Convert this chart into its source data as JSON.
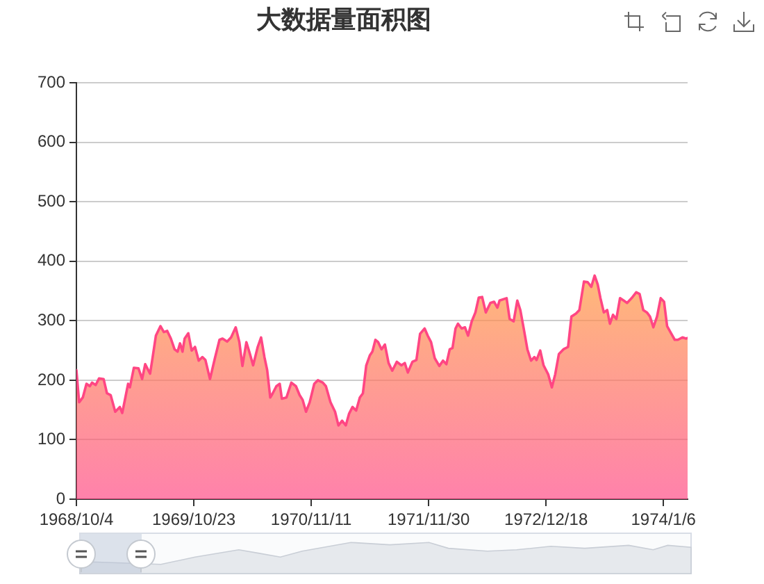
{
  "chart_data": {
    "type": "area",
    "title": "大数据量面积图",
    "x": [
      "1968-10-04",
      "1968-10-13",
      "1968-10-25",
      "1968-11-06",
      "1968-11-17",
      "1968-11-24",
      "1968-12-06",
      "1968-12-17",
      "1969-01-01",
      "1969-01-12",
      "1969-01-24",
      "1969-02-08",
      "1969-02-23",
      "1969-03-03",
      "1969-03-10",
      "1969-03-22",
      "1969-03-28",
      "1969-04-10",
      "1969-04-25",
      "1969-05-07",
      "1969-05-17",
      "1969-06-02",
      "1969-06-09",
      "1969-06-21",
      "1969-07-06",
      "1969-07-17",
      "1969-07-28",
      "1969-08-09",
      "1969-08-21",
      "1969-08-31",
      "1969-09-08",
      "1969-09-16",
      "1969-09-23",
      "1969-10-05",
      "1969-10-16",
      "1969-10-27",
      "1969-11-08",
      "1969-11-20",
      "1969-11-30",
      "1969-12-15",
      "1969-12-31",
      "1970-01-15",
      "1970-01-25",
      "1970-02-09",
      "1970-02-22",
      "1970-03-09",
      "1970-03-21",
      "1970-03-31",
      "1970-04-13",
      "1970-04-23",
      "1970-05-05",
      "1970-05-20",
      "1970-05-31",
      "1970-06-11",
      "1970-06-20",
      "1970-06-30",
      "1970-07-08",
      "1970-07-20",
      "1970-07-31",
      "1970-08-07",
      "1970-08-22",
      "1970-09-07",
      "1970-09-22",
      "1970-10-04",
      "1970-10-14",
      "1970-10-25",
      "1970-11-06",
      "1970-11-21",
      "1970-12-03",
      "1970-12-19",
      "1970-12-29",
      "1971-01-13",
      "1971-01-28",
      "1971-02-08",
      "1971-02-20",
      "1971-03-04",
      "1971-03-15",
      "1971-03-26",
      "1971-04-07",
      "1971-04-19",
      "1971-04-29",
      "1971-05-10",
      "1971-05-22",
      "1971-05-30",
      "1971-06-09",
      "1971-06-18",
      "1971-06-29",
      "1971-07-10",
      "1971-07-22",
      "1971-08-03",
      "1971-08-18",
      "1971-09-02",
      "1971-09-13",
      "1971-09-23",
      "1971-10-08",
      "1971-10-21",
      "1971-11-02",
      "1971-11-17",
      "1971-11-27",
      "1971-12-08",
      "1971-12-20",
      "1972-01-04",
      "1972-01-16",
      "1972-01-27",
      "1972-02-07",
      "1972-02-16",
      "1972-02-26",
      "1972-03-05",
      "1972-03-17",
      "1972-03-28",
      "1972-04-07",
      "1972-04-19",
      "1972-05-01",
      "1972-05-12",
      "1972-05-23",
      "1972-06-04",
      "1972-06-19",
      "1972-07-01",
      "1972-07-12",
      "1972-07-19",
      "1972-08-11",
      "1972-08-21",
      "1972-09-03",
      "1972-09-15",
      "1972-09-25",
      "1972-10-06",
      "1972-10-18",
      "1972-10-30",
      "1972-11-10",
      "1972-11-17",
      "1972-11-29",
      "1972-12-10",
      "1972-12-25",
      "1973-01-06",
      "1973-01-17",
      "1973-01-29",
      "1973-02-13",
      "1973-02-28",
      "1973-03-11",
      "1973-03-26",
      "1973-04-06",
      "1973-04-21",
      "1973-05-03",
      "1973-05-15",
      "1973-05-26",
      "1973-06-05",
      "1973-06-14",
      "1973-06-25",
      "1973-07-06",
      "1973-07-15",
      "1973-07-25",
      "1973-08-05",
      "1973-08-17",
      "1973-08-29",
      "1973-09-09",
      "1973-09-24",
      "1973-10-09",
      "1973-10-20",
      "1973-11-01",
      "1973-11-13",
      "1973-11-23",
      "1973-12-04",
      "1973-12-16",
      "1973-12-28",
      "1974-01-08",
      "1974-01-18",
      "1974-01-31",
      "1974-02-12",
      "1974-02-22",
      "1974-03-09",
      "1974-03-21",
      "1974-03-26"
    ],
    "series": [
      {
        "color": "#ff4683",
        "values": [
          217,
          163,
          171,
          194,
          190,
          196,
          192,
          203,
          202,
          178,
          175,
          147,
          155,
          145,
          163,
          194,
          188,
          221,
          220,
          202,
          227,
          211,
          234,
          275,
          291,
          281,
          283,
          270,
          252,
          248,
          262,
          248,
          270,
          279,
          250,
          256,
          233,
          239,
          234,
          202,
          237,
          268,
          270,
          265,
          272,
          289,
          264,
          224,
          264,
          247,
          225,
          256,
          272,
          239,
          217,
          171,
          178,
          190,
          194,
          169,
          171,
          196,
          190,
          175,
          167,
          147,
          163,
          194,
          200,
          196,
          190,
          163,
          147,
          124,
          132,
          124,
          144,
          155,
          149,
          171,
          178,
          225,
          242,
          248,
          268,
          264,
          252,
          260,
          229,
          216,
          231,
          225,
          229,
          213,
          231,
          234,
          278,
          287,
          275,
          264,
          237,
          224,
          233,
          227,
          252,
          254,
          287,
          295,
          287,
          289,
          275,
          299,
          314,
          339,
          340,
          314,
          330,
          332,
          322,
          334,
          338,
          303,
          299,
          334,
          318,
          287,
          252,
          233,
          239,
          234,
          250,
          225,
          210,
          188,
          210,
          244,
          252,
          256,
          307,
          312,
          318,
          366,
          365,
          357,
          376,
          361,
          338,
          314,
          318,
          295,
          310,
          303,
          338,
          334,
          330,
          338,
          348,
          345,
          318,
          314,
          307,
          289,
          307,
          338,
          332,
          291,
          279,
          268,
          268,
          272,
          270,
          271
        ]
      }
    ],
    "xlim": [
      "1968-10-04",
      "1974-03-26"
    ],
    "xticks": [
      {
        "value": "1968-10-04",
        "label": "1968/10/4"
      },
      {
        "value": "1969-10-23",
        "label": "1969/10/23"
      },
      {
        "value": "1970-11-11",
        "label": "1970/11/11"
      },
      {
        "value": "1971-11-30",
        "label": "1971/11/30"
      },
      {
        "value": "1972-12-18",
        "label": "1972/12/18"
      },
      {
        "value": "1974-01-06",
        "label": "1974/1/6"
      }
    ],
    "ylim": [
      0,
      700
    ],
    "yticks": [
      0,
      100,
      200,
      300,
      400,
      500,
      600,
      700
    ],
    "grid": "y"
  }
}
